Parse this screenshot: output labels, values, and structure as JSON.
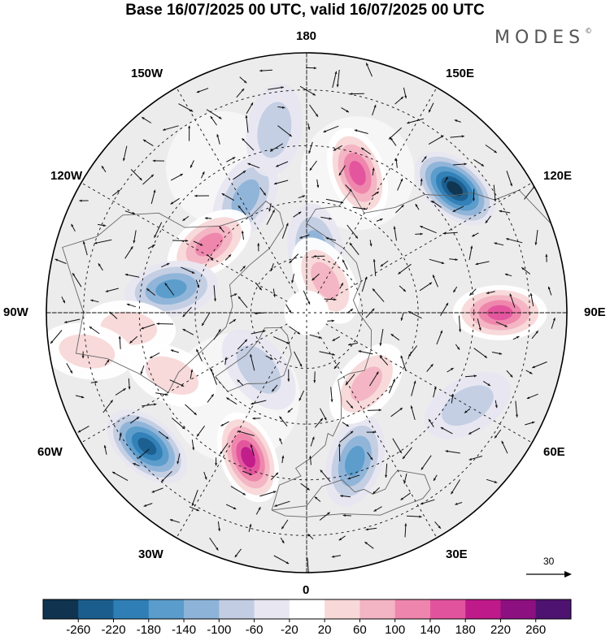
{
  "title": "Base 16/07/2025 00 UTC, valid 16/07/2025 00 UTC",
  "brand": "MODES",
  "brand_mark": "©",
  "lon_labels": {
    "top": "180",
    "bottom": "0",
    "left": "90W",
    "right": "90E",
    "upper_left_1": "150W",
    "upper_left_2": "120W",
    "upper_right_1": "150E",
    "upper_right_2": "120E",
    "lower_left_1": "60W",
    "lower_left_2": "30W",
    "lower_right_1": "60E",
    "lower_right_2": "30E"
  },
  "reference_vector": {
    "value": "30"
  },
  "colorbar": {
    "ticks": [
      "-260",
      "-220",
      "-180",
      "-140",
      "-100",
      "-60",
      "-20",
      "20",
      "60",
      "100",
      "140",
      "180",
      "220",
      "260"
    ],
    "colors": [
      "#10344f",
      "#1b5e8e",
      "#2f7fb6",
      "#5a9ccb",
      "#8eb3d8",
      "#c2cde3",
      "#e8e7f1",
      "#ffffff",
      "#f8d8d8",
      "#f3b4c3",
      "#ee85ac",
      "#e2539d",
      "#bf1a8a",
      "#8c1080",
      "#4e1370"
    ]
  },
  "colors": {
    "land": "#ececec",
    "ocean": "#ffffff",
    "coast": "#666666",
    "grid": "#111111"
  },
  "anomalies": [
    {
      "lon": -152,
      "lat": 55,
      "v": -120
    },
    {
      "lon": -125,
      "lat": 58,
      "v": 150
    },
    {
      "lon": -100,
      "lat": 53,
      "v": -140
    },
    {
      "lon": -85,
      "lat": 42,
      "v": 80
    },
    {
      "lon": -80,
      "lat": 30,
      "v": 60
    },
    {
      "lon": -65,
      "lat": 50,
      "v": 60
    },
    {
      "lon": -50,
      "lat": 34,
      "v": -240
    },
    {
      "lon": -22,
      "lat": 48,
      "v": 210
    },
    {
      "lon": 18,
      "lat": 48,
      "v": -150
    },
    {
      "lon": 40,
      "lat": 65,
      "v": 90
    },
    {
      "lon": 90,
      "lat": 38,
      "v": 170
    },
    {
      "lon": 130,
      "lat": 38,
      "v": -250
    },
    {
      "lon": 160,
      "lat": 50,
      "v": 170
    },
    {
      "lon": 172,
      "lat": 73,
      "v": -120
    },
    {
      "lon": 150,
      "lat": 80,
      "v": 100
    },
    {
      "lon": -170,
      "lat": 40,
      "v": -60
    },
    {
      "lon": 60,
      "lat": 40,
      "v": -60
    },
    {
      "lon": -40,
      "lat": 70,
      "v": -80
    }
  ]
}
